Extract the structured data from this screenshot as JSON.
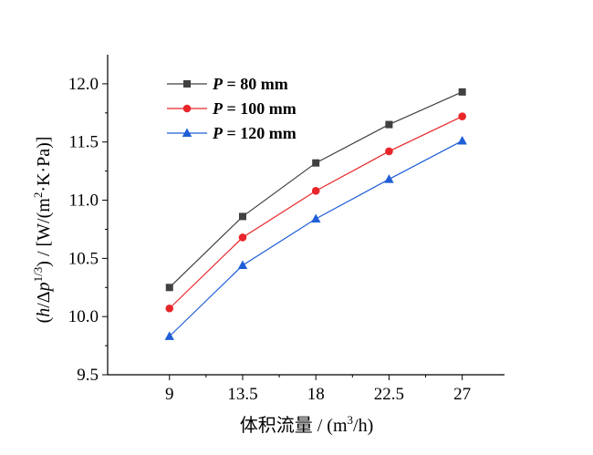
{
  "chart_data": {
    "type": "line",
    "categories": [
      "9",
      "13.5",
      "18",
      "22.5",
      "27"
    ],
    "x": [
      9,
      13.5,
      18,
      22.5,
      27
    ],
    "xlabel": {
      "main": "体积流量 / (m",
      "sup": "3",
      "tail": "/h)"
    },
    "ylabel": {
      "open": "(",
      "h": "h",
      "slash": "/Δ",
      "p": "p",
      "sup": "1/3",
      "close": ")  / [W/(m",
      "sup2": "2",
      "rest": "·K·Pa)]"
    },
    "yticks": [
      "9.5",
      "10.0",
      "10.5",
      "11.0",
      "11.5",
      "12.0"
    ],
    "ylim": [
      9.5,
      12.25
    ],
    "legend_position": "top-left",
    "series": [
      {
        "name_var": "P",
        "name_rest": " = 80 mm",
        "marker": "square",
        "color": "#404040",
        "values": [
          10.25,
          10.86,
          11.32,
          11.65,
          11.93
        ]
      },
      {
        "name_var": "P",
        "name_rest": " = 100 mm",
        "marker": "circle",
        "color": "#e8262a",
        "values": [
          10.07,
          10.68,
          11.08,
          11.42,
          11.72
        ]
      },
      {
        "name_var": "P",
        "name_rest": " = 120 mm",
        "marker": "triangle",
        "color": "#1f5ed6",
        "values": [
          9.83,
          10.44,
          10.84,
          11.18,
          11.51
        ]
      }
    ]
  }
}
